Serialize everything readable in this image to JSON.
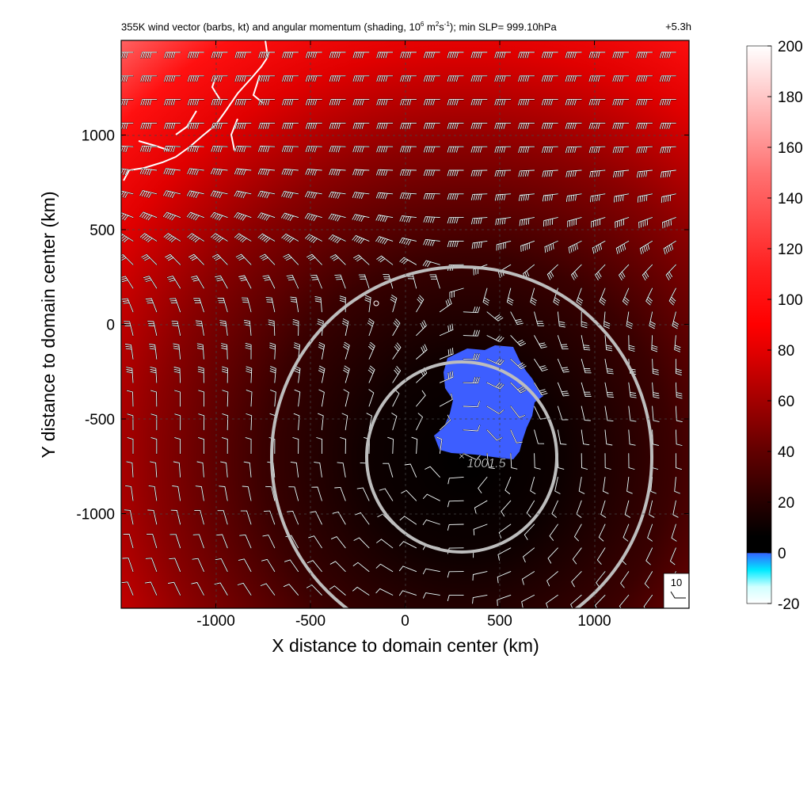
{
  "title": {
    "prefix": "355K wind vector (barbs, kt) and angular momentum (shading, 10",
    "exp1": "6",
    "mid1": " m",
    "exp2": "2",
    "mid2": "s",
    "exp3": "-1",
    "suffix": "); min SLP= 999.10hPa",
    "time": "+5.3h"
  },
  "chart_data": {
    "type": "heatmap",
    "xlabel": "X distance to domain center (km)",
    "ylabel": "Y distance to domain center (km)",
    "xlim": [
      -1500,
      1500
    ],
    "ylim": [
      -1500,
      1500
    ],
    "x_ticks": [
      -1000,
      -500,
      0,
      500,
      1000
    ],
    "y_ticks": [
      -1000,
      -500,
      0,
      500,
      1000
    ],
    "x_tick_labels": [
      "-1000",
      "-500",
      "0",
      "500",
      "1000"
    ],
    "y_tick_labels": [
      "-1000",
      "-500",
      "0",
      "500",
      "1000"
    ],
    "grid": true,
    "colorbar": {
      "range": [
        -20,
        200
      ],
      "ticks": [
        -20,
        0,
        20,
        40,
        60,
        80,
        100,
        120,
        140,
        160,
        180,
        200
      ],
      "tick_labels": [
        "-20",
        "0",
        "20",
        "40",
        "60",
        "80",
        "100",
        "120",
        "140",
        "160",
        "180",
        "200"
      ],
      "colors": {
        "cyan": "#00ffff",
        "blue": "#3366ff",
        "black": "#000000",
        "red": "#ff0000",
        "white": "#ffffff"
      }
    },
    "center": {
      "x": 300,
      "y": -700,
      "label": "1001.5"
    },
    "rings_radius_km": [
      500,
      1000
    ],
    "reference_barb_label": "10",
    "min_slp_hpa": 999.1,
    "coastline_region": "top-left"
  }
}
